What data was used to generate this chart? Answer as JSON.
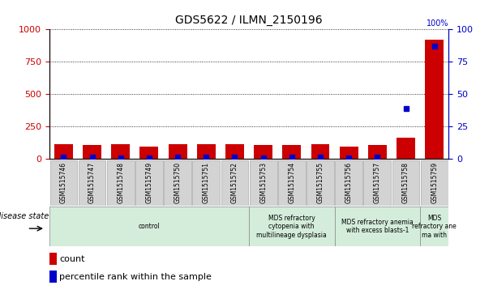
{
  "title": "GDS5622 / ILMN_2150196",
  "samples": [
    "GSM1515746",
    "GSM1515747",
    "GSM1515748",
    "GSM1515749",
    "GSM1515750",
    "GSM1515751",
    "GSM1515752",
    "GSM1515753",
    "GSM1515754",
    "GSM1515755",
    "GSM1515756",
    "GSM1515757",
    "GSM1515758",
    "GSM1515759"
  ],
  "red_bars": [
    115,
    105,
    110,
    95,
    110,
    110,
    115,
    105,
    105,
    115,
    95,
    105,
    160,
    920
  ],
  "blue_vals_pct": [
    1.0,
    1.0,
    0.8,
    0.5,
    1.2,
    1.2,
    1.2,
    0.8,
    1.0,
    1.5,
    0.5,
    1.0,
    39,
    87
  ],
  "ylim_left": [
    0,
    1000
  ],
  "ylim_right": [
    0,
    100
  ],
  "yticks_left": [
    0,
    250,
    500,
    750,
    1000
  ],
  "yticks_right": [
    0,
    25,
    50,
    75,
    100
  ],
  "left_axis_color": "#cc0000",
  "right_axis_color": "#0000cc",
  "bar_color": "#cc0000",
  "dot_color": "#0000cc",
  "bg_color": "#ffffff",
  "grid_color": "#000000",
  "disease_groups": [
    {
      "label": "control",
      "start": 0,
      "end": 6,
      "color": "#d4edda"
    },
    {
      "label": "MDS refractory\ncytopenia with\nmultilineage dysplasia",
      "start": 7,
      "end": 9,
      "color": "#d4edda"
    },
    {
      "label": "MDS refractory anemia\nwith excess blasts-1",
      "start": 10,
      "end": 12,
      "color": "#d4edda"
    },
    {
      "label": "MDS\nrefractory ane\nma with",
      "start": 13,
      "end": 13,
      "color": "#d4edda"
    }
  ],
  "disease_state_label": "disease state",
  "bar_width": 0.65,
  "figsize": [
    6.08,
    3.63
  ],
  "dpi": 100
}
